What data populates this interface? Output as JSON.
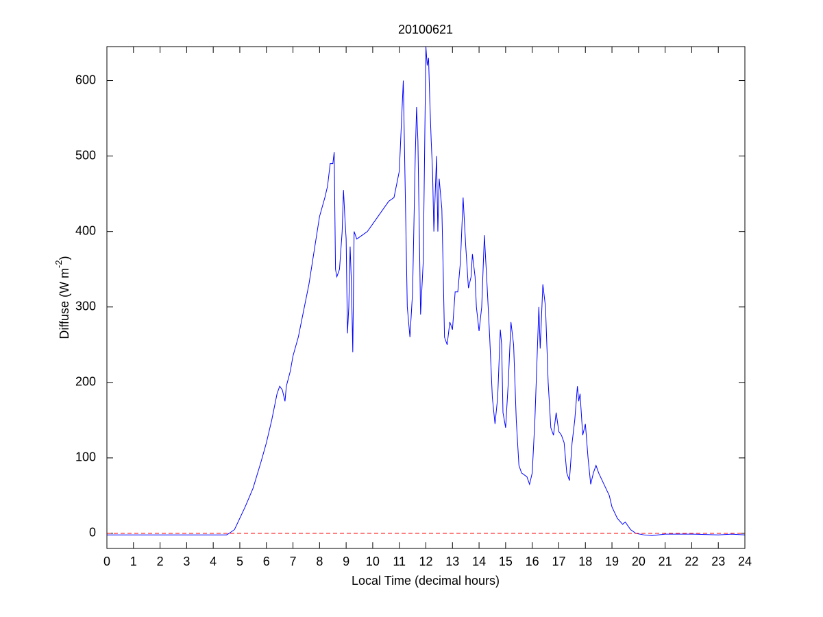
{
  "chart_data": {
    "type": "line",
    "title": "20100621",
    "xlabel": "Local Time (decimal hours)",
    "ylabel": {
      "text": "Diffuse (W m",
      "superscript": "-2",
      "suffix": ")"
    },
    "xlim": [
      0,
      24
    ],
    "xticks": [
      0,
      1,
      2,
      3,
      4,
      5,
      6,
      7,
      8,
      9,
      10,
      11,
      12,
      13,
      14,
      15,
      16,
      17,
      18,
      19,
      20,
      21,
      22,
      23,
      24
    ],
    "ylim": [
      -20,
      645
    ],
    "yticks": [
      0,
      100,
      200,
      300,
      400,
      500,
      600
    ],
    "grid": false,
    "reference_line": {
      "value": 0,
      "color": "#ff0000",
      "style": "dashed"
    },
    "series": [
      {
        "color": "#0000ff",
        "x": [
          0,
          1,
          2,
          3,
          4,
          4.5,
          4.6,
          4.8,
          5.0,
          5.2,
          5.5,
          5.8,
          6.0,
          6.2,
          6.4,
          6.5,
          6.6,
          6.7,
          6.75,
          6.9,
          7.0,
          7.2,
          7.4,
          7.6,
          7.8,
          8.0,
          8.2,
          8.3,
          8.4,
          8.5,
          8.55,
          8.6,
          8.65,
          8.75,
          8.85,
          8.9,
          8.95,
          9.0,
          9.05,
          9.1,
          9.15,
          9.2,
          9.25,
          9.3,
          9.4,
          9.6,
          9.8,
          10.0,
          10.2,
          10.4,
          10.6,
          10.8,
          11.0,
          11.1,
          11.15,
          11.2,
          11.3,
          11.4,
          11.5,
          11.6,
          11.65,
          11.7,
          11.8,
          11.9,
          11.95,
          12.0,
          12.05,
          12.1,
          12.15,
          12.2,
          12.25,
          12.3,
          12.4,
          12.45,
          12.5,
          12.6,
          12.65,
          12.7,
          12.8,
          12.9,
          13.0,
          13.1,
          13.2,
          13.3,
          13.4,
          13.5,
          13.6,
          13.7,
          13.75,
          13.85,
          13.9,
          14.0,
          14.1,
          14.2,
          14.3,
          14.4,
          14.5,
          14.6,
          14.7,
          14.8,
          14.85,
          14.9,
          15.0,
          15.1,
          15.2,
          15.3,
          15.4,
          15.5,
          15.6,
          15.8,
          15.9,
          16.0,
          16.1,
          16.2,
          16.25,
          16.3,
          16.4,
          16.5,
          16.6,
          16.7,
          16.8,
          16.9,
          17.0,
          17.1,
          17.2,
          17.3,
          17.4,
          17.5,
          17.6,
          17.7,
          17.75,
          17.8,
          17.9,
          18.0,
          18.1,
          18.2,
          18.3,
          18.4,
          18.5,
          18.7,
          18.9,
          19.0,
          19.2,
          19.4,
          19.5,
          19.7,
          19.9,
          20.2,
          20.5,
          21,
          22,
          23,
          23.5,
          24
        ],
        "values": [
          -2,
          -2,
          -2,
          -2,
          -2,
          -2,
          0,
          5,
          20,
          35,
          60,
          95,
          120,
          150,
          185,
          195,
          190,
          175,
          195,
          215,
          235,
          260,
          295,
          330,
          375,
          420,
          445,
          460,
          490,
          490,
          505,
          350,
          340,
          350,
          400,
          455,
          420,
          390,
          265,
          300,
          380,
          330,
          240,
          400,
          390,
          395,
          400,
          410,
          420,
          430,
          440,
          445,
          480,
          560,
          600,
          500,
          300,
          260,
          320,
          500,
          565,
          520,
          290,
          360,
          500,
          645,
          620,
          630,
          570,
          520,
          480,
          400,
          500,
          400,
          470,
          430,
          350,
          260,
          250,
          280,
          270,
          320,
          320,
          360,
          445,
          380,
          325,
          340,
          370,
          340,
          300,
          268,
          300,
          395,
          330,
          260,
          180,
          145,
          180,
          270,
          250,
          160,
          140,
          200,
          280,
          250,
          150,
          90,
          80,
          75,
          65,
          80,
          150,
          250,
          300,
          245,
          330,
          300,
          200,
          140,
          130,
          160,
          135,
          130,
          120,
          80,
          70,
          120,
          150,
          195,
          175,
          185,
          130,
          145,
          100,
          65,
          80,
          90,
          80,
          65,
          50,
          35,
          20,
          12,
          15,
          5,
          0,
          -2,
          -3,
          -1,
          -1,
          -2,
          -1,
          -2
        ]
      }
    ]
  }
}
